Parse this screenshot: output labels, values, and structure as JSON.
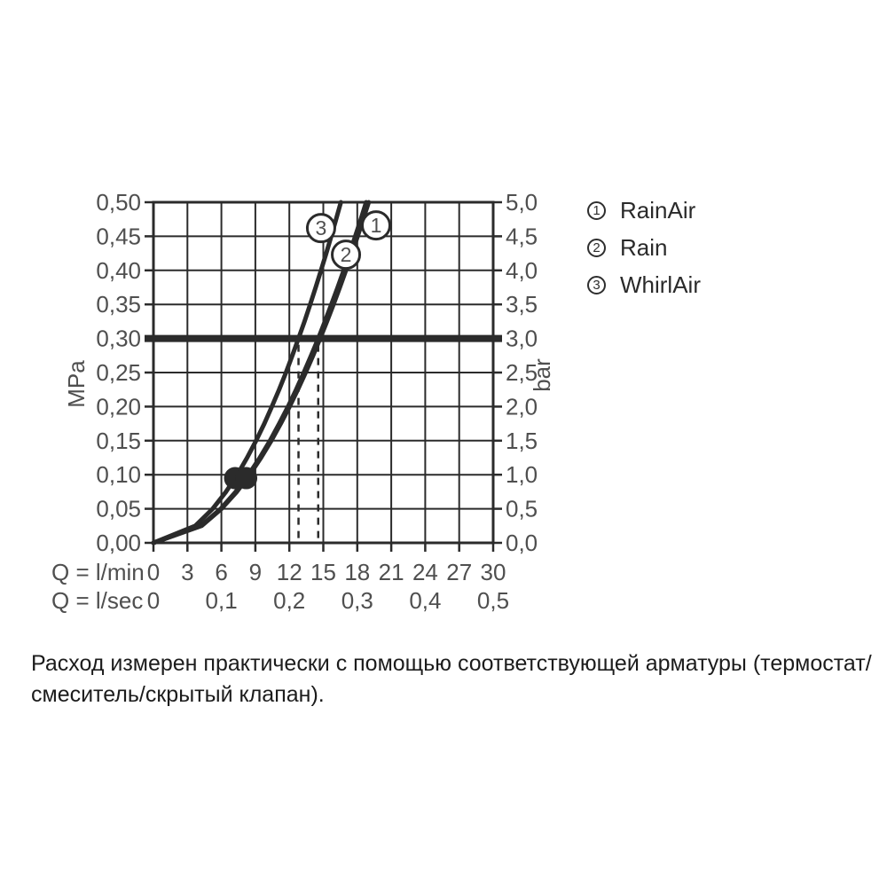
{
  "legend": {
    "items": [
      {
        "number": "1",
        "label": "RainAir"
      },
      {
        "number": "2",
        "label": "Rain"
      },
      {
        "number": "3",
        "label": "WhirlAir"
      }
    ]
  },
  "caption": {
    "line1": "Расход измерен практически с помощью соответствующей арматуры (термостат/",
    "line2": "смеситель/скрытый клапан)."
  },
  "chart_data": {
    "type": "line",
    "title": "",
    "grid": {
      "cols": 10,
      "rows": 10,
      "on": true
    },
    "line_color": "#2b2b2b",
    "text_color": "#525252",
    "y_left": {
      "label": "MPa",
      "range_mpa": [
        0,
        0.5
      ],
      "ticks": [
        "0,50",
        "0,45",
        "0,40",
        "0,35",
        "0,30",
        "0,25",
        "0,20",
        "0,15",
        "0,10",
        "0,05",
        "0,00"
      ]
    },
    "y_right": {
      "label": "bar",
      "range_bar": [
        0,
        5
      ],
      "ticks": [
        "5,0",
        "4,5",
        "4,0",
        "3,5",
        "3,0",
        "2,5",
        "2,0",
        "1,5",
        "1,0",
        "0,5",
        "0,0"
      ]
    },
    "x_axis": {
      "label_row1": "Q = l/min",
      "ticks_row1": [
        "0",
        "3",
        "6",
        "9",
        "12",
        "15",
        "18",
        "21",
        "24",
        "27",
        "30"
      ],
      "label_row2": "Q = l/sec",
      "ticks_row2": [
        [
          "0",
          0
        ],
        [
          "0,1",
          6
        ],
        [
          "0,2",
          12
        ],
        [
          "0,3",
          18
        ],
        [
          "0,4",
          24
        ],
        [
          "0,5",
          30
        ]
      ],
      "range_lmin": [
        0,
        30
      ]
    },
    "reference_line": {
      "pressure_bar": 3.0
    },
    "dashed_guides_q_lmin": [
      12.81,
      14.55
    ],
    "markers": [
      {
        "p_bar": 0.95,
        "q_lmin": 7.21
      },
      {
        "p_bar": 0.95,
        "q_lmin": 8.19
      }
    ],
    "series": [
      {
        "name": "RainAir",
        "number": "1",
        "callout": {
          "p_bar": 4.66,
          "q_lmin": 19.66
        },
        "points": [
          [
            0,
            0
          ],
          [
            0.25,
            4.25
          ],
          [
            0.5,
            6.01
          ],
          [
            0.75,
            7.36
          ],
          [
            1,
            8.5
          ],
          [
            1.25,
            9.5
          ],
          [
            1.5,
            10.41
          ],
          [
            1.75,
            11.24
          ],
          [
            2,
            12.02
          ],
          [
            2.25,
            12.75
          ],
          [
            2.5,
            13.44
          ],
          [
            2.75,
            14.1
          ],
          [
            3,
            14.72
          ],
          [
            3.25,
            15.32
          ],
          [
            3.5,
            15.9
          ],
          [
            3.75,
            16.46
          ],
          [
            4,
            17.0
          ],
          [
            4.25,
            17.52
          ],
          [
            4.5,
            18.03
          ],
          [
            4.75,
            18.52
          ],
          [
            5,
            19.01
          ]
        ]
      },
      {
        "name": "Rain",
        "number": "2",
        "callout": {
          "p_bar": 4.23,
          "q_lmin": 17.0
        },
        "points": [
          [
            0,
            0
          ],
          [
            0.25,
            4.2
          ],
          [
            0.5,
            5.94
          ],
          [
            0.75,
            7.27
          ],
          [
            1,
            8.4
          ],
          [
            1.25,
            9.39
          ],
          [
            1.5,
            10.29
          ],
          [
            1.75,
            11.11
          ],
          [
            2,
            11.88
          ],
          [
            2.25,
            12.6
          ],
          [
            2.5,
            13.28
          ],
          [
            2.75,
            13.93
          ],
          [
            3,
            14.55
          ],
          [
            3.25,
            15.14
          ],
          [
            3.5,
            15.71
          ],
          [
            3.75,
            16.27
          ],
          [
            4,
            16.8
          ],
          [
            4.25,
            17.32
          ],
          [
            4.5,
            17.82
          ],
          [
            4.75,
            18.31
          ],
          [
            5,
            18.78
          ]
        ]
      },
      {
        "name": "WhirlAir",
        "number": "3",
        "callout": {
          "p_bar": 4.62,
          "q_lmin": 14.8
        },
        "points": [
          [
            0,
            0
          ],
          [
            0.25,
            3.7
          ],
          [
            0.5,
            5.23
          ],
          [
            0.75,
            6.41
          ],
          [
            1,
            7.4
          ],
          [
            1.25,
            8.27
          ],
          [
            1.5,
            9.06
          ],
          [
            1.75,
            9.79
          ],
          [
            2,
            10.46
          ],
          [
            2.25,
            11.1
          ],
          [
            2.5,
            11.7
          ],
          [
            2.75,
            12.27
          ],
          [
            3,
            12.81
          ],
          [
            3.25,
            13.34
          ],
          [
            3.5,
            13.84
          ],
          [
            3.75,
            14.33
          ],
          [
            4,
            14.8
          ],
          [
            4.25,
            15.26
          ],
          [
            4.5,
            15.7
          ],
          [
            4.75,
            16.13
          ],
          [
            5,
            16.55
          ]
        ]
      }
    ]
  }
}
